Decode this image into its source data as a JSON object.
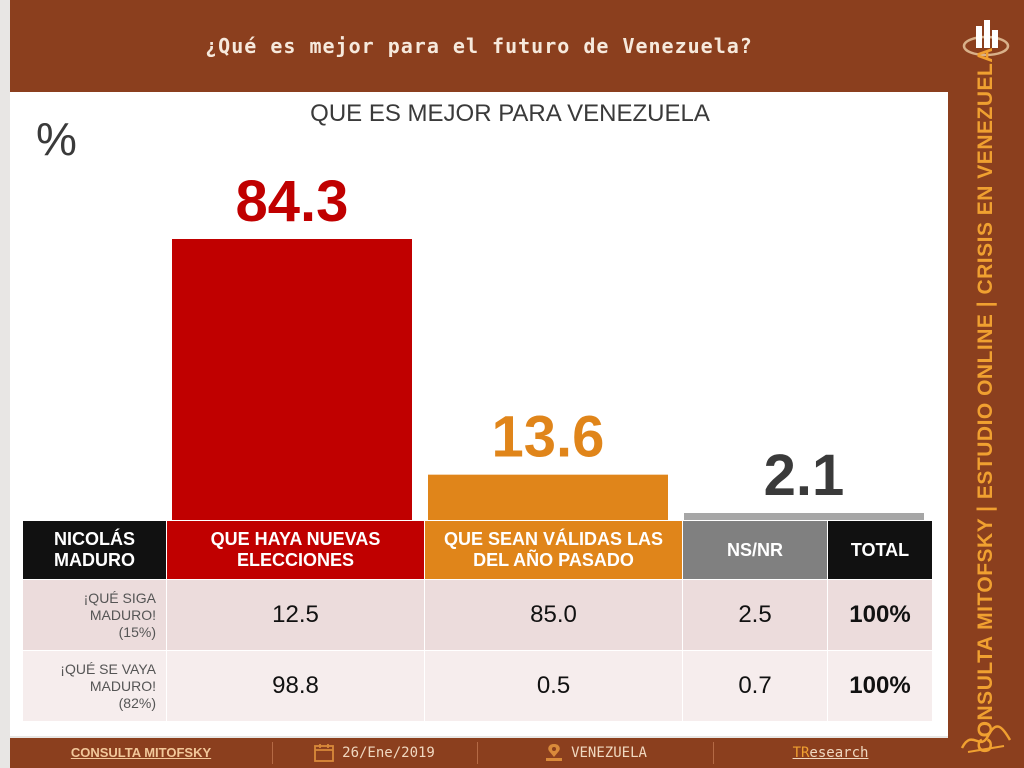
{
  "header": {
    "title": "¿Qué es mejor para el futuro de Venezuela?"
  },
  "chart_data": {
    "type": "bar",
    "title": "QUE ES MEJOR PARA VENEZUELA",
    "unit_label": "%",
    "categories": [
      "QUE HAYA NUEVAS ELECCIONES",
      "QUE SEAN VÁLIDAS LAS DEL AÑO PASADO",
      "NS/NR"
    ],
    "values": [
      84.3,
      13.6,
      2.1
    ],
    "value_labels": [
      "84.3",
      "13.6",
      "2.1"
    ],
    "colors": [
      "#c00000",
      "#e0851a",
      "#a6a6a6"
    ],
    "label_colors": [
      "#c00000",
      "#e0851a",
      "#3a3a3a"
    ],
    "ylim": [
      0,
      100
    ],
    "grid": false
  },
  "table": {
    "header": {
      "maduro": "NICOLÁS MADURO",
      "nuevas": "QUE HAYA NUEVAS ELECCIONES",
      "validas": "QUE SEAN VÁLIDAS LAS DEL AÑO PASADO",
      "nsnr": "NS/NR",
      "total": "TOTAL"
    },
    "rows": [
      {
        "label_line1": "¡QUÉ SIGA",
        "label_line2": "MADURO!",
        "share": "(15%)",
        "nuevas": "12.5",
        "validas": "85.0",
        "nsnr": "2.5",
        "total": "100%"
      },
      {
        "label_line1": "¡QUÉ SE VAYA",
        "label_line2": "MADURO!",
        "share": "(82%)",
        "nuevas": "98.8",
        "validas": "0.5",
        "nsnr": "0.7",
        "total": "100%"
      }
    ]
  },
  "sidebar": {
    "vertical_text": "CONSULTA MITOFSKY | ESTUDIO ONLINE | CRISIS EN VENEZUELA"
  },
  "footer": {
    "brand": "CONSULTA MITOFSKY",
    "date": "26/Ene/2019",
    "location": "VENEZUELA",
    "partner_a": "TR",
    "partner_b": "esearch"
  },
  "icons": [
    "logo-icon",
    "calendar-icon",
    "map-pin-icon",
    "signature-icon"
  ]
}
